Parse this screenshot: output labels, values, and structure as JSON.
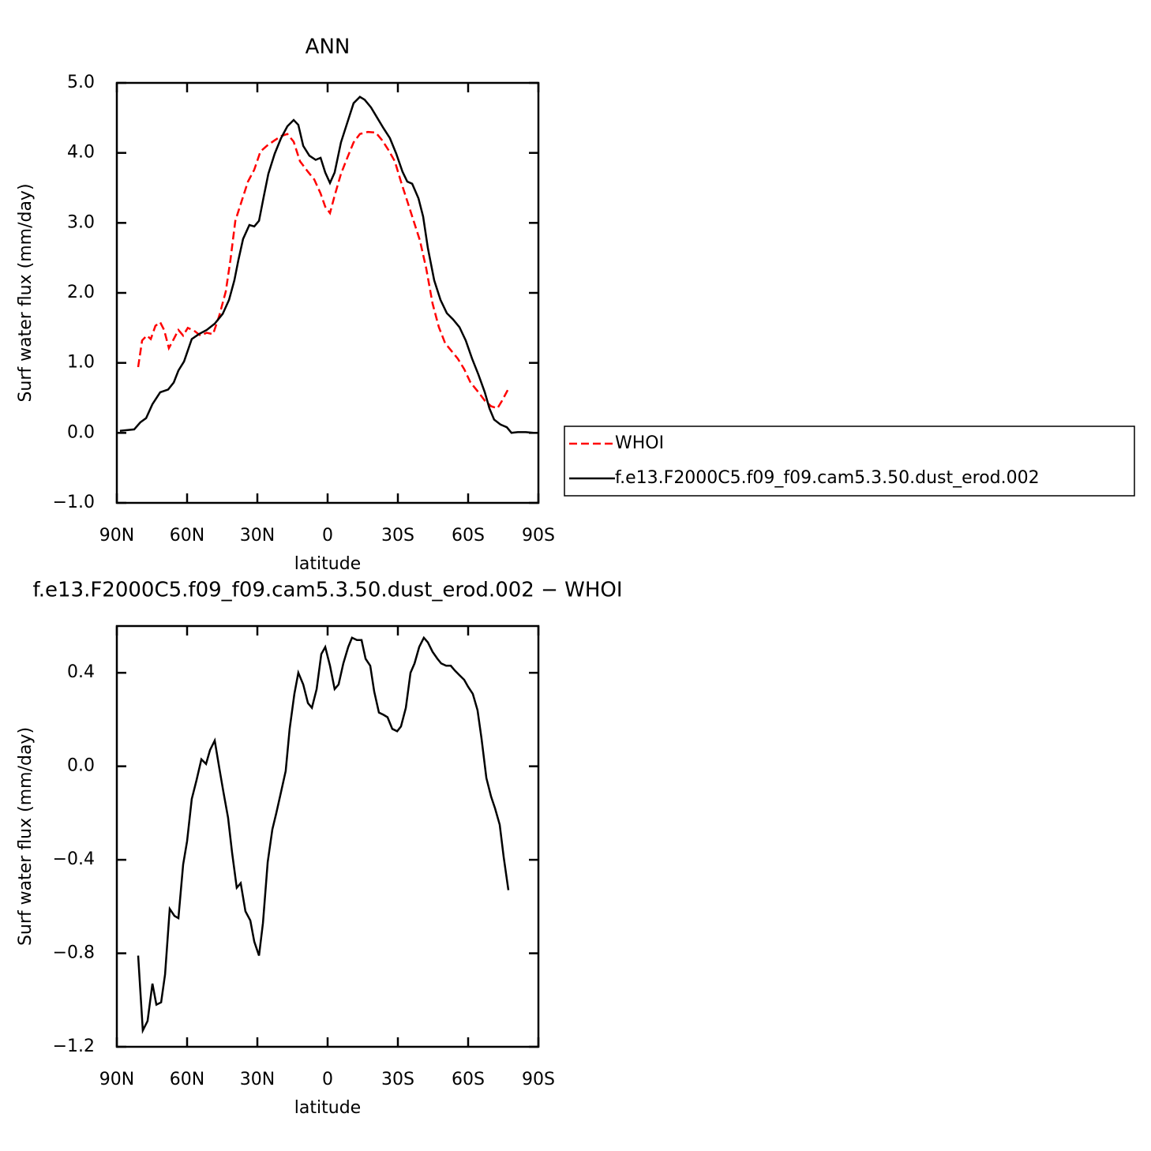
{
  "chart_data": [
    {
      "type": "line",
      "title": "ANN",
      "xlabel": "latitude",
      "ylabel": "Surf water flux (mm/day)",
      "xlim": [
        90,
        -90
      ],
      "xticks": [
        {
          "value": 90,
          "label": "90N"
        },
        {
          "value": 60,
          "label": "60N"
        },
        {
          "value": 30,
          "label": "30N"
        },
        0,
        {
          "value": -30,
          "label": "30S"
        },
        {
          "value": -60,
          "label": "60S"
        },
        {
          "value": -90,
          "label": "90S"
        }
      ],
      "ylim": [
        -1.0,
        5.0
      ],
      "yticks": [
        {
          "value": -1.0,
          "label": "−1.0"
        },
        {
          "value": 0.0,
          "label": "0.0"
        },
        {
          "value": 1.0,
          "label": "1.0"
        },
        {
          "value": 2.0,
          "label": "2.0"
        },
        {
          "value": 3.0,
          "label": "3.0"
        },
        {
          "value": 4.0,
          "label": "4.0"
        },
        {
          "value": 5.0,
          "label": "5.0"
        }
      ],
      "legend": "right",
      "series": [
        {
          "name": "WHOI",
          "color": "#ff0000",
          "linestyle": "dashed",
          "x": [
            80.9,
            79.2,
            77.2,
            75.5,
            73.5,
            71.5,
            69.8,
            67.8,
            65.7,
            63.7,
            61.7,
            59.7,
            57,
            54.3,
            51.6,
            48.9,
            46.2,
            43.5,
            41.5,
            39.4,
            36.7,
            34,
            31.3,
            28.7,
            26,
            22.6,
            19.9,
            17.2,
            14.5,
            11.8,
            8.4,
            5.7,
            3.0,
            1.0,
            -1.0,
            -3.0,
            -5.7,
            -8.4,
            -11.1,
            -13.8,
            -17.2,
            -20.6,
            -23.3,
            -26,
            -28.7,
            -31.3,
            -34,
            -36.7,
            -39.4,
            -42.1,
            -44.8,
            -47.5,
            -50.2,
            -52.9,
            -55.6,
            -58.3,
            -61,
            -64.4,
            -67.1,
            -69.8,
            -72.5,
            -74.5,
            -76.9
          ],
          "values": [
            0.94,
            1.32,
            1.39,
            1.34,
            1.53,
            1.58,
            1.47,
            1.21,
            1.34,
            1.47,
            1.39,
            1.5,
            1.46,
            1.39,
            1.43,
            1.41,
            1.68,
            2.02,
            2.47,
            3.03,
            3.31,
            3.59,
            3.76,
            4.02,
            4.1,
            4.18,
            4.24,
            4.27,
            4.16,
            3.88,
            3.73,
            3.62,
            3.42,
            3.23,
            3.14,
            3.39,
            3.7,
            3.93,
            4.15,
            4.27,
            4.3,
            4.29,
            4.18,
            4.04,
            3.88,
            3.59,
            3.31,
            3.03,
            2.75,
            2.35,
            1.85,
            1.51,
            1.28,
            1.17,
            1.06,
            0.91,
            0.72,
            0.58,
            0.46,
            0.38,
            0.35,
            0.46,
            0.61
          ]
        },
        {
          "name": "f.e13.F2000C5.f09_f09.cam5.3.50.dust_erod.002",
          "color": "#000000",
          "linestyle": "solid",
          "x": [
            88.7,
            82.6,
            80,
            77.5,
            74.8,
            71.5,
            68.1,
            65.7,
            63.7,
            61.3,
            58,
            55,
            51.6,
            48.2,
            44.8,
            42.1,
            39.8,
            38.1,
            36.1,
            33.4,
            31.3,
            29.3,
            27.3,
            25.3,
            22.6,
            19.9,
            17.2,
            14.5,
            12.5,
            10.4,
            7.8,
            5.1,
            3.0,
            1.0,
            -1.0,
            -3.0,
            -5.7,
            -8.4,
            -11.1,
            -13.8,
            -15.8,
            -18.5,
            -21.2,
            -23.9,
            -26.6,
            -29.3,
            -32,
            -34,
            -36.1,
            -38.8,
            -40.8,
            -42.8,
            -45.5,
            -48.2,
            -50.9,
            -53.6,
            -56.3,
            -59,
            -61.7,
            -64.4,
            -67.1,
            -69.1,
            -71.1,
            -73.8,
            -76.5,
            -78.5,
            -81.2,
            -84.6,
            -87.9
          ],
          "values": [
            0.03,
            0.05,
            0.15,
            0.21,
            0.41,
            0.58,
            0.62,
            0.72,
            0.89,
            1.02,
            1.34,
            1.41,
            1.47,
            1.56,
            1.7,
            1.9,
            2.18,
            2.47,
            2.77,
            2.97,
            2.95,
            3.03,
            3.37,
            3.7,
            3.99,
            4.21,
            4.38,
            4.47,
            4.4,
            4.1,
            3.96,
            3.9,
            3.93,
            3.72,
            3.57,
            3.72,
            4.15,
            4.43,
            4.71,
            4.8,
            4.76,
            4.65,
            4.5,
            4.35,
            4.21,
            3.99,
            3.73,
            3.59,
            3.56,
            3.35,
            3.09,
            2.64,
            2.18,
            1.9,
            1.71,
            1.62,
            1.51,
            1.32,
            1.06,
            0.83,
            0.58,
            0.35,
            0.19,
            0.12,
            0.08,
            0.0,
            0.01,
            0.01,
            0.0
          ]
        }
      ]
    },
    {
      "type": "line",
      "title": "f.e13.F2000C5.f09_f09.cam5.3.50.dust_erod.002 − WHOI",
      "xlabel": "latitude",
      "ylabel": "Surf water flux (mm/day)",
      "xlim": [
        90,
        -90
      ],
      "xticks": [
        {
          "value": 90,
          "label": "90N"
        },
        {
          "value": 60,
          "label": "60N"
        },
        {
          "value": 30,
          "label": "30N"
        },
        0,
        {
          "value": -30,
          "label": "30S"
        },
        {
          "value": -60,
          "label": "60S"
        },
        {
          "value": -90,
          "label": "90S"
        }
      ],
      "ylim": [
        -1.2,
        0.6
      ],
      "yticks": [
        {
          "value": -1.2,
          "label": "−1.2"
        },
        {
          "value": -0.8,
          "label": "−0.8"
        },
        {
          "value": -0.4,
          "label": "−0.4"
        },
        {
          "value": 0.0,
          "label": "0.0"
        },
        0.4
      ],
      "series": [
        {
          "color": "#000000",
          "linestyle": "solid",
          "x": [
            80.9,
            78.9,
            76.9,
            74.8,
            73.1,
            71.1,
            69.4,
            67.4,
            65.4,
            63.7,
            61.7,
            60,
            58,
            56,
            53.9,
            51.9,
            50.2,
            48.2,
            46.2,
            44.5,
            42.5,
            40.8,
            38.8,
            37.1,
            35.1,
            33,
            31.3,
            29.3,
            27.6,
            25.6,
            23.6,
            21.9,
            19.9,
            17.9,
            16.2,
            14.2,
            12.5,
            10.4,
            8.4,
            6.7,
            4.7,
            2.7,
            1.0,
            -1.0,
            -3.0,
            -4.7,
            -6.7,
            -8.8,
            -10.4,
            -12.5,
            -14.5,
            -16.2,
            -18.2,
            -19.9,
            -21.9,
            -23.9,
            -25.6,
            -27.6,
            -29.7,
            -31.3,
            -33.4,
            -35.4,
            -37.1,
            -39.1,
            -41.1,
            -42.8,
            -44.8,
            -46.9,
            -48.5,
            -50.6,
            -52.6,
            -54.3,
            -56.3,
            -58.3,
            -60,
            -62,
            -64,
            -65.7,
            -67.8,
            -69.8,
            -71.5,
            -73.5,
            -75.2,
            -77.2
          ],
          "values": [
            -0.81,
            -1.13,
            -1.09,
            -0.93,
            -1.02,
            -1.01,
            -0.89,
            -0.61,
            -0.64,
            -0.65,
            -0.42,
            -0.32,
            -0.14,
            -0.06,
            0.03,
            0.01,
            0.07,
            0.11,
            -0.01,
            -0.11,
            -0.22,
            -0.37,
            -0.52,
            -0.5,
            -0.62,
            -0.66,
            -0.75,
            -0.81,
            -0.67,
            -0.41,
            -0.27,
            -0.2,
            -0.11,
            -0.02,
            0.16,
            0.31,
            0.4,
            0.35,
            0.27,
            0.25,
            0.33,
            0.48,
            0.51,
            0.43,
            0.33,
            0.35,
            0.44,
            0.51,
            0.55,
            0.54,
            0.54,
            0.46,
            0.43,
            0.32,
            0.23,
            0.22,
            0.21,
            0.16,
            0.15,
            0.17,
            0.25,
            0.4,
            0.44,
            0.51,
            0.55,
            0.53,
            0.49,
            0.46,
            0.44,
            0.43,
            0.43,
            0.41,
            0.39,
            0.37,
            0.34,
            0.31,
            0.24,
            0.12,
            -0.05,
            -0.13,
            -0.18,
            -0.25,
            -0.39,
            -0.53
          ]
        }
      ]
    }
  ]
}
